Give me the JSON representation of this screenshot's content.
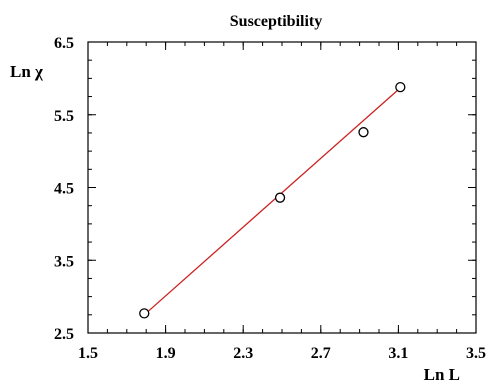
{
  "chart_data": {
    "type": "scatter",
    "title": "Susceptibility",
    "xlabel": "Ln L",
    "ylabel": "Ln χ",
    "xlim": [
      1.5,
      3.5
    ],
    "ylim": [
      2.5,
      6.5
    ],
    "xticks": [
      "1.5",
      "1.9",
      "2.3",
      "2.7",
      "3.1",
      "3.5"
    ],
    "yticks": [
      "2.5",
      "3.5",
      "4.5",
      "5.5",
      "6.5"
    ],
    "grid": false,
    "points": [
      {
        "x": 1.79,
        "y": 2.77
      },
      {
        "x": 2.49,
        "y": 4.36
      },
      {
        "x": 2.92,
        "y": 5.26
      },
      {
        "x": 3.11,
        "y": 5.88
      }
    ],
    "fit_line": {
      "x": [
        1.79,
        3.11
      ],
      "y": [
        2.75,
        5.87
      ]
    },
    "colors": {
      "fit": "#cc2222",
      "marker_edge": "#000000",
      "marker_fill": "#ffffff",
      "axis": "#000000"
    }
  }
}
